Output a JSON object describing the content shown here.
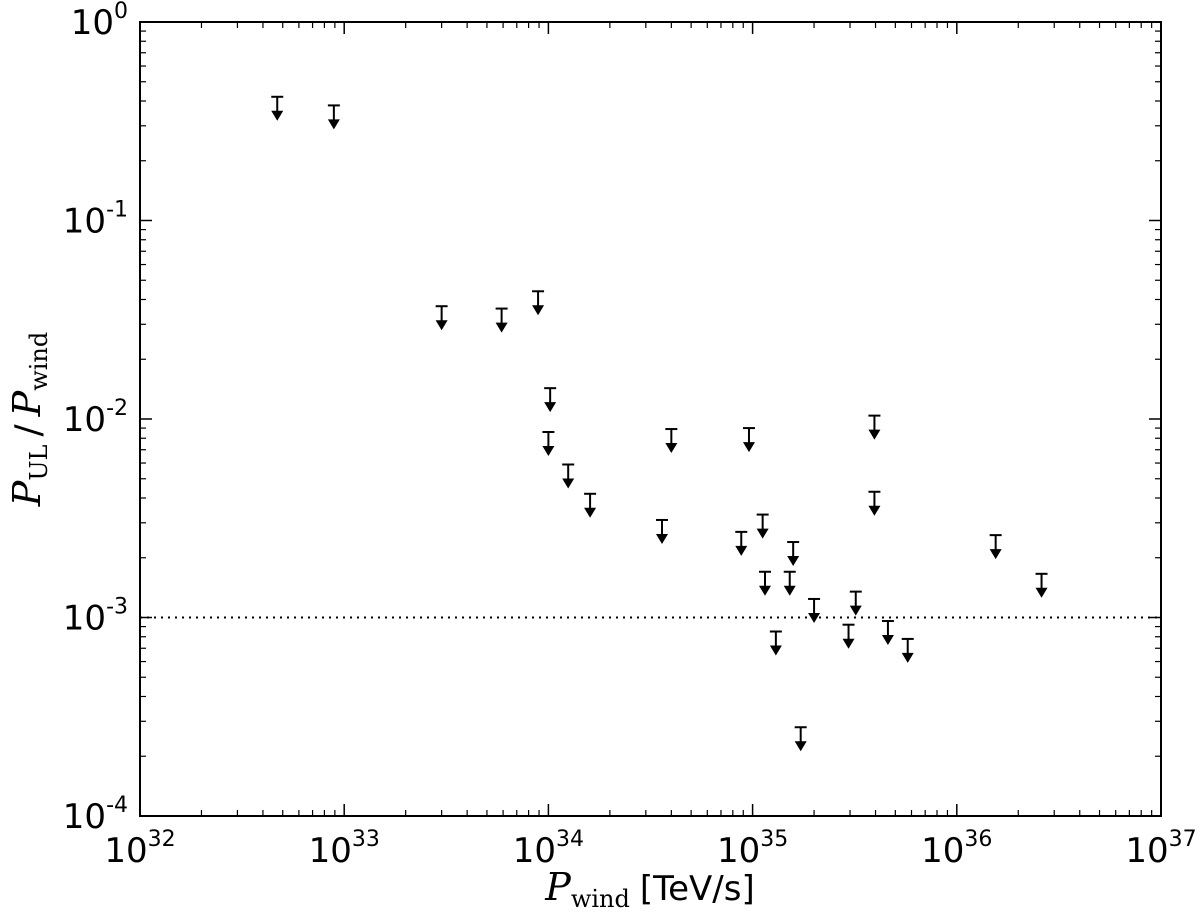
{
  "chart_data": {
    "type": "scatter",
    "marker": "upper-limit-arrow",
    "xscale": "log",
    "yscale": "log",
    "xlim": [
      1e+32,
      1e+37
    ],
    "ylim": [
      0.0001,
      1
    ],
    "x_ticks": [
      {
        "base": "10",
        "exp": "32"
      },
      {
        "base": "10",
        "exp": "33"
      },
      {
        "base": "10",
        "exp": "34"
      },
      {
        "base": "10",
        "exp": "35"
      },
      {
        "base": "10",
        "exp": "36"
      },
      {
        "base": "10",
        "exp": "37"
      }
    ],
    "y_ticks": [
      {
        "base": "10",
        "exp": "0"
      },
      {
        "base": "10",
        "exp": "-1"
      },
      {
        "base": "10",
        "exp": "-2"
      },
      {
        "base": "10",
        "exp": "-3"
      },
      {
        "base": "10",
        "exp": "-4"
      }
    ],
    "xlabel": {
      "symbol": "P",
      "subscript": "wind",
      "unit": "[TeV/s]"
    },
    "ylabel": {
      "symbol1": "P",
      "sub1": "UL",
      "separator": "/",
      "symbol2": "P",
      "sub2": "wind"
    },
    "reference_line": {
      "y": 0.001,
      "style": "dotted"
    },
    "grid": false,
    "points": [
      {
        "x": 4.7e+32,
        "y": 0.42
      },
      {
        "x": 8.9e+32,
        "y": 0.38
      },
      {
        "x": 3e+33,
        "y": 0.037
      },
      {
        "x": 5.9e+33,
        "y": 0.036
      },
      {
        "x": 8.9e+33,
        "y": 0.044
      },
      {
        "x": 1.02e+34,
        "y": 0.0143
      },
      {
        "x": 1e+34,
        "y": 0.0086
      },
      {
        "x": 1.25e+34,
        "y": 0.0059
      },
      {
        "x": 1.6e+34,
        "y": 0.0042
      },
      {
        "x": 3.6e+34,
        "y": 0.0031
      },
      {
        "x": 4e+34,
        "y": 0.0089
      },
      {
        "x": 8.8e+34,
        "y": 0.0027
      },
      {
        "x": 9.6e+34,
        "y": 0.009
      },
      {
        "x": 1.12e+35,
        "y": 0.0033
      },
      {
        "x": 1.15e+35,
        "y": 0.0017
      },
      {
        "x": 1.3e+35,
        "y": 0.00085
      },
      {
        "x": 1.52e+35,
        "y": 0.0017
      },
      {
        "x": 1.58e+35,
        "y": 0.0024
      },
      {
        "x": 1.72e+35,
        "y": 0.00028
      },
      {
        "x": 2e+35,
        "y": 0.00124
      },
      {
        "x": 2.95e+35,
        "y": 0.00092
      },
      {
        "x": 3.2e+35,
        "y": 0.00135
      },
      {
        "x": 3.95e+35,
        "y": 0.0104
      },
      {
        "x": 3.95e+35,
        "y": 0.0043
      },
      {
        "x": 4.6e+35,
        "y": 0.00096
      },
      {
        "x": 5.75e+35,
        "y": 0.00078
      },
      {
        "x": 1.55e+36,
        "y": 0.0026
      },
      {
        "x": 2.6e+36,
        "y": 0.00166
      }
    ]
  }
}
